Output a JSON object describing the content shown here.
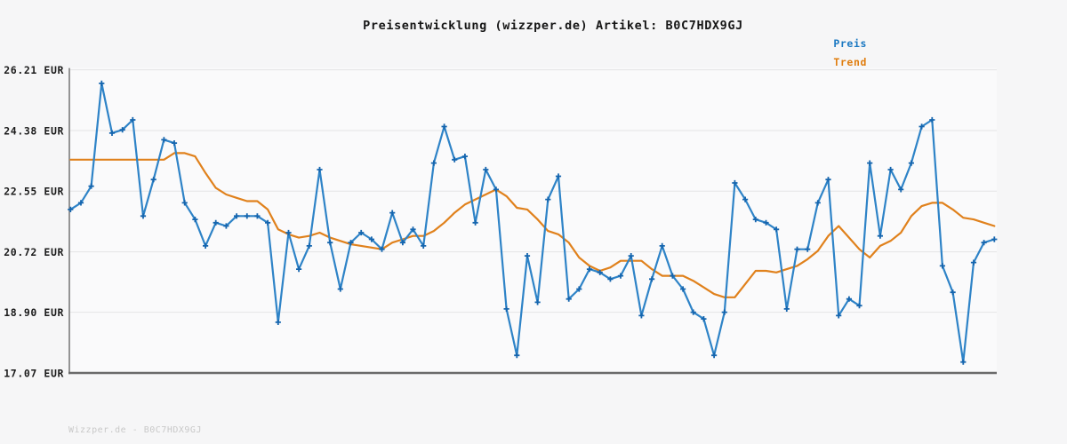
{
  "window": {
    "background": "#f6f6f7",
    "plot_background": "#fafafb"
  },
  "header": {
    "title": "Preisentwicklung (wizzper.de) Artikel: B0C7HDX9GJ"
  },
  "legend": {
    "position": "top-right",
    "items": [
      {
        "label": "Preis",
        "color": "#1a78c2"
      },
      {
        "label": "Trend",
        "color": "#e07d0e"
      }
    ]
  },
  "chart_data": {
    "type": "line",
    "title": "Preisentwicklung (wizzper.de) Artikel: B0C7HDX9GJ",
    "xlabel": "",
    "ylabel": "",
    "x_axis": {
      "tick_labels_visible": false,
      "num_points": 90
    },
    "ylim": [
      17.07,
      26.21
    ],
    "grid": "horizontal",
    "grid_color": "#e4e4e6",
    "axis_color_left": "#949494",
    "axis_color_bottom": "#6a6a6a",
    "y_ticks": [
      {
        "label": "26.21 EUR",
        "value": 26.21
      },
      {
        "label": "24.38 EUR",
        "value": 24.38
      },
      {
        "label": "22.55 EUR",
        "value": 22.55
      },
      {
        "label": "20.72 EUR",
        "value": 20.72
      },
      {
        "label": "18.90 EUR",
        "value": 18.9
      },
      {
        "label": "17.07 EUR",
        "value": 17.07
      }
    ],
    "series": [
      {
        "name": "Preis",
        "type": "line",
        "color": "#2e83c7",
        "marker": "plus",
        "marker_color": "#1565ae",
        "values": [
          22.0,
          22.2,
          22.7,
          25.8,
          24.3,
          24.4,
          24.7,
          21.8,
          22.9,
          24.1,
          24.0,
          22.2,
          21.7,
          20.9,
          21.6,
          21.5,
          21.8,
          21.8,
          21.8,
          21.6,
          18.6,
          21.3,
          20.2,
          20.9,
          23.2,
          21.0,
          19.6,
          21.0,
          21.3,
          21.1,
          20.8,
          21.9,
          21.0,
          21.4,
          20.9,
          23.4,
          24.5,
          23.5,
          23.6,
          21.6,
          23.2,
          22.6,
          19.0,
          17.6,
          20.6,
          19.2,
          22.3,
          23.0,
          19.3,
          19.6,
          20.2,
          20.1,
          19.9,
          20.0,
          20.6,
          18.8,
          19.9,
          20.9,
          20.0,
          19.6,
          18.9,
          18.7,
          17.6,
          18.9,
          22.8,
          22.3,
          21.7,
          21.6,
          21.4,
          19.0,
          20.8,
          20.8,
          22.2,
          22.9,
          18.8,
          19.3,
          19.1,
          23.4,
          21.2,
          23.2,
          22.6,
          23.4,
          24.5,
          24.7,
          20.3,
          19.5,
          17.4,
          20.4,
          21.0,
          21.1
        ]
      },
      {
        "name": "Trend",
        "type": "line",
        "color": "#e0811c",
        "marker": "none",
        "values": [
          23.5,
          23.5,
          23.5,
          23.5,
          23.5,
          23.5,
          23.5,
          23.5,
          23.5,
          23.5,
          23.7,
          23.7,
          23.6,
          23.1,
          22.65,
          22.45,
          22.35,
          22.25,
          22.25,
          22.0,
          21.4,
          21.25,
          21.15,
          21.2,
          21.3,
          21.15,
          21.05,
          20.95,
          20.9,
          20.85,
          20.8,
          21.0,
          21.1,
          21.2,
          21.2,
          21.35,
          21.6,
          21.9,
          22.15,
          22.3,
          22.45,
          22.6,
          22.4,
          22.05,
          22.0,
          21.7,
          21.35,
          21.25,
          21.0,
          20.55,
          20.3,
          20.15,
          20.25,
          20.45,
          20.45,
          20.45,
          20.2,
          20.0,
          20.0,
          20.0,
          19.85,
          19.65,
          19.45,
          19.35,
          19.35,
          19.75,
          20.15,
          20.15,
          20.1,
          20.2,
          20.3,
          20.5,
          20.75,
          21.2,
          21.5,
          21.15,
          20.8,
          20.55,
          20.9,
          21.05,
          21.3,
          21.8,
          22.1,
          22.2,
          22.2,
          22.0,
          21.75,
          21.7,
          21.6,
          21.5
        ]
      }
    ]
  },
  "footer": {
    "watermark": "Wizzper.de - B0C7HDX9GJ"
  }
}
